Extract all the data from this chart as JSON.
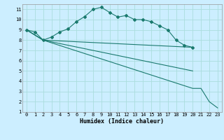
{
  "xlabel": "Humidex (Indice chaleur)",
  "background_color": "#cceeff",
  "grid_color": "#aadddd",
  "line_color": "#1a7a6e",
  "xlim": [
    -0.5,
    23.5
  ],
  "ylim": [
    1,
    11.5
  ],
  "xticks": [
    0,
    1,
    2,
    3,
    4,
    5,
    6,
    7,
    8,
    9,
    10,
    11,
    12,
    13,
    14,
    15,
    16,
    17,
    18,
    19,
    20,
    21,
    22,
    23
  ],
  "yticks": [
    1,
    2,
    3,
    4,
    5,
    6,
    7,
    8,
    9,
    10,
    11
  ],
  "series": [
    {
      "x": [
        0,
        1,
        2,
        3,
        4,
        5,
        6,
        7,
        8,
        9,
        10,
        11,
        12,
        13,
        14,
        15,
        16,
        17,
        18,
        19,
        20
      ],
      "y": [
        9,
        8.8,
        8.0,
        8.3,
        8.8,
        9.1,
        9.8,
        10.3,
        11.0,
        11.2,
        10.7,
        10.25,
        10.4,
        10.0,
        10.0,
        9.8,
        9.4,
        9.0,
        8.0,
        7.5,
        7.3
      ],
      "marker": true
    },
    {
      "x": [
        0,
        2,
        20
      ],
      "y": [
        9,
        8.0,
        7.3
      ],
      "marker": false
    },
    {
      "x": [
        0,
        2,
        20
      ],
      "y": [
        9,
        8.0,
        5.0
      ],
      "marker": false
    },
    {
      "x": [
        0,
        2,
        20,
        21,
        22,
        23
      ],
      "y": [
        9,
        8.0,
        3.3,
        3.3,
        2.0,
        1.4
      ],
      "marker": false
    }
  ]
}
